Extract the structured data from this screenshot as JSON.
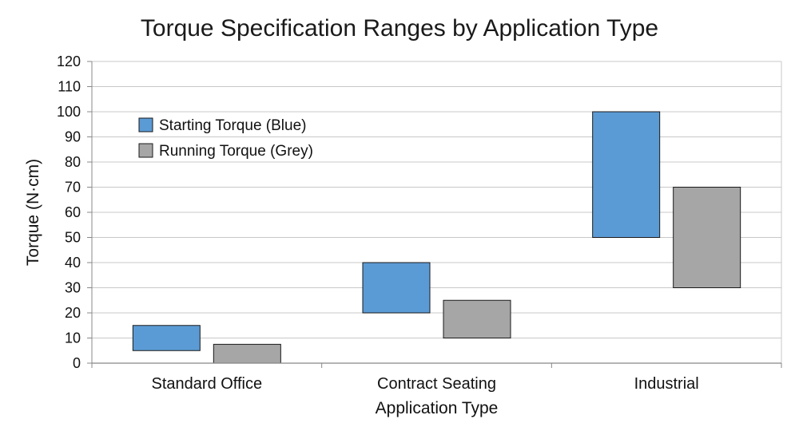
{
  "chart_data": {
    "type": "floating-bar",
    "title": "Torque Specification Ranges by Application Type",
    "xlabel": "Application Type",
    "ylabel": "Torque (N·cm)",
    "ylim": [
      0,
      120
    ],
    "yticks": [
      0,
      10,
      20,
      30,
      40,
      50,
      60,
      70,
      80,
      90,
      100,
      110,
      120
    ],
    "grid": true,
    "legend_position": "top-left",
    "categories": [
      "Standard Office",
      "Contract Seating",
      "Industrial"
    ],
    "series": [
      {
        "name": "Starting Torque (Blue)",
        "color": "#5b9bd5",
        "ranges": [
          [
            5,
            15
          ],
          [
            20,
            40
          ],
          [
            50,
            100
          ]
        ]
      },
      {
        "name": "Running Torque (Grey)",
        "color": "#a6a6a6",
        "ranges": [
          [
            0,
            7.5
          ],
          [
            10,
            25
          ],
          [
            30,
            70
          ]
        ]
      }
    ]
  }
}
